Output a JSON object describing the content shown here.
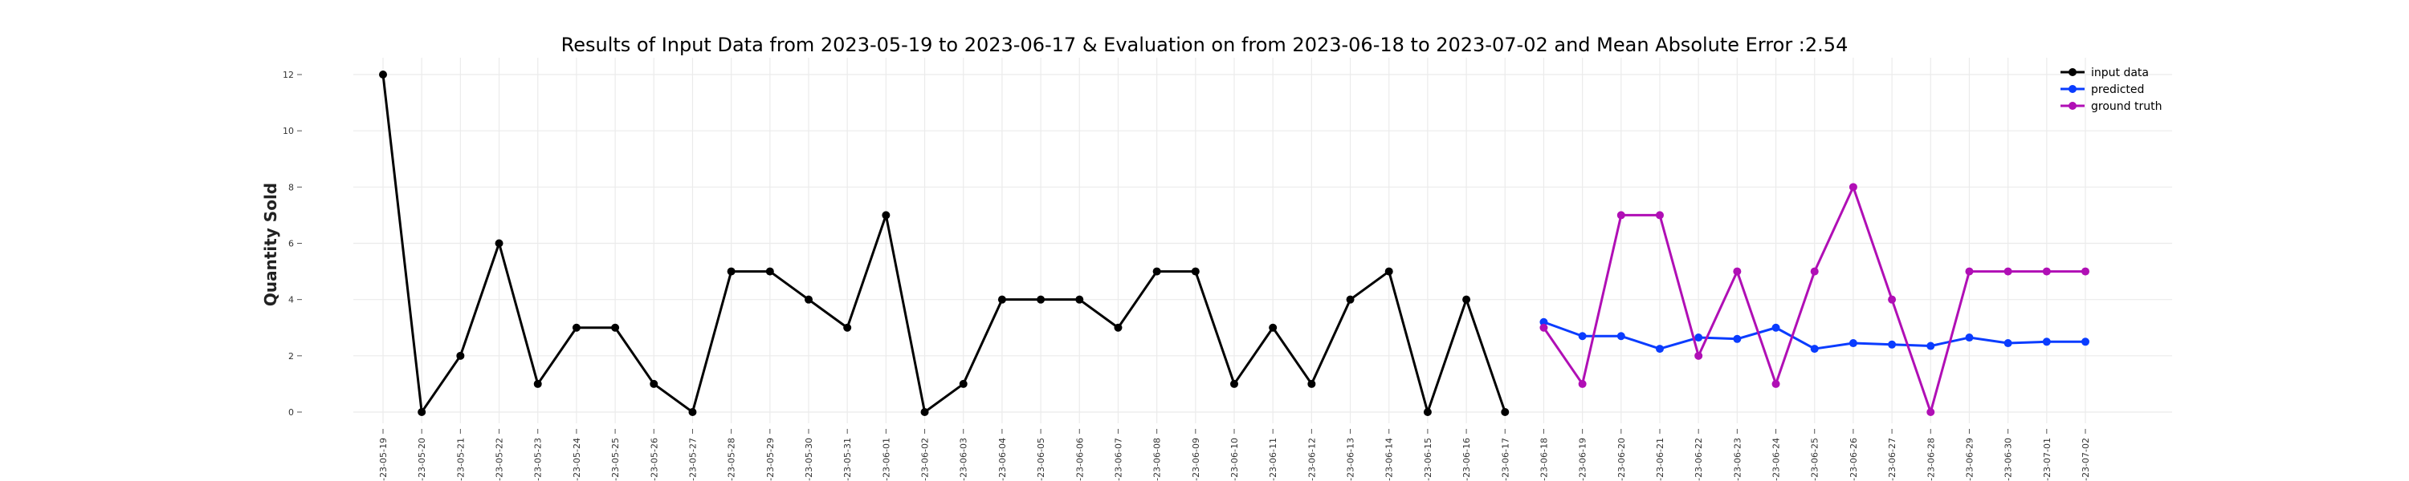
{
  "chart_data": {
    "type": "line",
    "title": "Results of Input Data from 2023-05-19 to 2023-06-17 & Evaluation on from 2023-06-18 to 2023-07-02 and Mean Absolute Error  :2.54",
    "xlabel": "",
    "ylabel": "Quantity Sold",
    "ylim": [
      -0.7,
      12.6
    ],
    "yticks": [
      0,
      2,
      4,
      6,
      8,
      10,
      12
    ],
    "grid": true,
    "legend_position": "top-right",
    "categories": [
      "2023-05-19",
      "2023-05-20",
      "2023-05-21",
      "2023-05-22",
      "2023-05-23",
      "2023-05-24",
      "2023-05-25",
      "2023-05-26",
      "2023-05-27",
      "2023-05-28",
      "2023-05-29",
      "2023-05-30",
      "2023-05-31",
      "2023-06-01",
      "2023-06-02",
      "2023-06-03",
      "2023-06-04",
      "2023-06-05",
      "2023-06-06",
      "2023-06-07",
      "2023-06-08",
      "2023-06-09",
      "2023-06-10",
      "2023-06-11",
      "2023-06-12",
      "2023-06-13",
      "2023-06-14",
      "2023-06-15",
      "2023-06-16",
      "2023-06-17",
      "2023-06-18",
      "2023-06-19",
      "2023-06-20",
      "2023-06-21",
      "2023-06-22",
      "2023-06-23",
      "2023-06-24",
      "2023-06-25",
      "2023-06-26",
      "2023-06-27",
      "2023-06-28",
      "2023-06-29",
      "2023-06-30",
      "2023-07-01",
      "2023-07-02"
    ],
    "tick_labels": [
      "-23-05-19",
      "-23-05-20",
      "-23-05-21",
      "-23-05-22",
      "-23-05-23",
      "-23-05-24",
      "-23-05-25",
      "-23-05-26",
      "-23-05-27",
      "-23-05-28",
      "-23-05-29",
      "-23-05-30",
      "-23-05-31",
      "-23-06-01",
      "-23-06-02",
      "-23-06-03",
      "-23-06-04",
      "-23-06-05",
      "-23-06-06",
      "-23-06-07",
      "-23-06-08",
      "-23-06-09",
      "-23-06-10",
      "-23-06-11",
      "-23-06-12",
      "-23-06-13",
      "-23-06-14",
      "-23-06-15",
      "-23-06-16",
      "-23-06-17",
      "-23-06-18",
      "-23-06-19",
      "-23-06-20",
      "-23-06-21",
      "-23-06-22",
      "-23-06-23",
      "-23-06-24",
      "-23-06-25",
      "-23-06-26",
      "-23-06-27",
      "-23-06-28",
      "-23-06-29",
      "-23-06-30",
      "-23-07-01",
      "-23-07-02"
    ],
    "series": [
      {
        "name": "input data",
        "color": "#000000",
        "x": [
          "2023-05-19",
          "2023-05-20",
          "2023-05-21",
          "2023-05-22",
          "2023-05-23",
          "2023-05-24",
          "2023-05-25",
          "2023-05-26",
          "2023-05-27",
          "2023-05-28",
          "2023-05-29",
          "2023-05-30",
          "2023-05-31",
          "2023-06-01",
          "2023-06-02",
          "2023-06-03",
          "2023-06-04",
          "2023-06-05",
          "2023-06-06",
          "2023-06-07",
          "2023-06-08",
          "2023-06-09",
          "2023-06-10",
          "2023-06-11",
          "2023-06-12",
          "2023-06-13",
          "2023-06-14",
          "2023-06-15",
          "2023-06-16",
          "2023-06-17"
        ],
        "values": [
          12,
          0,
          2,
          6,
          1,
          3,
          3,
          1,
          0,
          5,
          5,
          4,
          3,
          7,
          0,
          1,
          4,
          4,
          4,
          3,
          5,
          5,
          1,
          3,
          1,
          4,
          5,
          0,
          4,
          0
        ]
      },
      {
        "name": "predicted",
        "color": "#0a3cff",
        "x": [
          "2023-06-18",
          "2023-06-19",
          "2023-06-20",
          "2023-06-21",
          "2023-06-22",
          "2023-06-23",
          "2023-06-24",
          "2023-06-25",
          "2023-06-26",
          "2023-06-27",
          "2023-06-28",
          "2023-06-29",
          "2023-06-30",
          "2023-07-01",
          "2023-07-02"
        ],
        "values": [
          3.2,
          2.7,
          2.7,
          2.25,
          2.65,
          2.6,
          3.0,
          2.25,
          2.45,
          2.4,
          2.35,
          2.65,
          2.45,
          2.5,
          2.5
        ]
      },
      {
        "name": "ground truth",
        "color": "#b00fb5",
        "x": [
          "2023-06-18",
          "2023-06-19",
          "2023-06-20",
          "2023-06-21",
          "2023-06-22",
          "2023-06-23",
          "2023-06-24",
          "2023-06-25",
          "2023-06-26",
          "2023-06-27",
          "2023-06-28",
          "2023-06-29",
          "2023-06-30",
          "2023-07-01",
          "2023-07-02"
        ],
        "values": [
          3,
          1,
          7,
          7,
          2,
          5,
          1,
          5,
          8,
          4,
          0,
          5,
          5,
          5,
          5
        ]
      }
    ]
  }
}
